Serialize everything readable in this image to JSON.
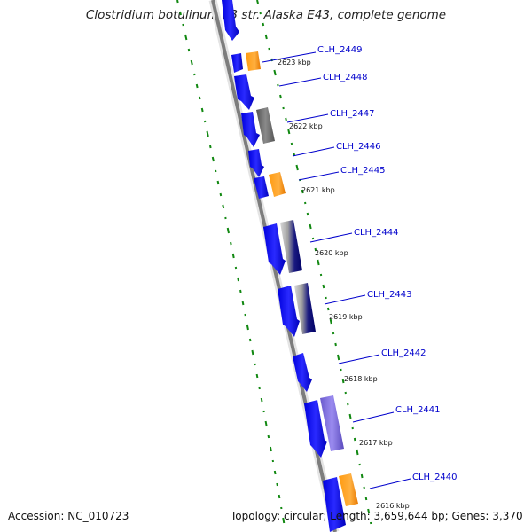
{
  "map": {
    "title": "Clostridium botulinum E3 str. Alaska E43, complete genome",
    "accession": "Accession: NC_010723",
    "summary": "Topology: circular; Length: 3,659,644 bp; Genes: 3,370"
  },
  "genes": [
    {
      "label": "CLH_2449"
    },
    {
      "label": "CLH_2448"
    },
    {
      "label": "CLH_2447"
    },
    {
      "label": "CLH_2446"
    },
    {
      "label": "CLH_2445"
    },
    {
      "label": "CLH_2444"
    },
    {
      "label": "CLH_2443"
    },
    {
      "label": "CLH_2442"
    },
    {
      "label": "CLH_2441"
    },
    {
      "label": "CLH_2440"
    }
  ],
  "ticks": [
    {
      "label": "2623 kbp"
    },
    {
      "label": "2622 kbp"
    },
    {
      "label": "2621 kbp"
    },
    {
      "label": "2620 kbp"
    },
    {
      "label": "2619 kbp"
    },
    {
      "label": "2618 kbp"
    },
    {
      "label": "2617 kbp"
    },
    {
      "label": "2616 kbp"
    }
  ],
  "colors": {
    "gene": "#1111ee",
    "orange": "#ff8c00",
    "gray": "#707070",
    "purple": "#7b68ee",
    "backbone": "#8a8a8a",
    "gc": "#118811",
    "label": "#0000cc"
  }
}
